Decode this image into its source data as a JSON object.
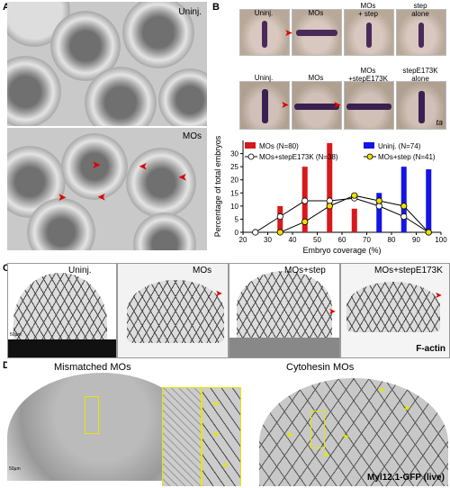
{
  "panels": {
    "A": {
      "label": "A",
      "top_label": "Uninj.",
      "bottom_label": "MOs"
    },
    "B": {
      "label": "B",
      "row1": [
        "Uninj.",
        "MOs",
        "MOs\n+ step",
        "step\nalone"
      ],
      "row2": [
        "Uninj.",
        "MOs",
        "MOs\n+stepE173K",
        "stepE173K\nalone"
      ],
      "ta_label": "ta"
    },
    "C": {
      "label": "C",
      "tiles": [
        "Uninj.",
        "MOs",
        "MOs+step",
        "MOs+stepE173K"
      ],
      "scale": "50µm",
      "stain": "F-actin"
    },
    "D": {
      "label": "D",
      "left": "Mismatched MOs",
      "right": "Cytohesin MOs",
      "scale": "50µm",
      "reporter": "Myl12.1-GFP (live)"
    }
  },
  "chart_data": {
    "type": "bar",
    "ylabel": "Percentage of total embryos",
    "xlabel": "Embryo coverage (%)",
    "xlim": [
      20,
      100
    ],
    "ylim": [
      0,
      35
    ],
    "xticks": [
      20,
      30,
      40,
      50,
      60,
      70,
      80,
      90,
      100
    ],
    "yticks": [
      0,
      5,
      10,
      15,
      20,
      25,
      30
    ],
    "series": [
      {
        "name": "MOs (N=80)",
        "kind": "bar",
        "color": "#d7191c",
        "x": [
          35,
          45,
          55,
          65
        ],
        "values": [
          10,
          25,
          34,
          9
        ]
      },
      {
        "name": "Uninj. (N=74)",
        "kind": "bar",
        "color": "#1414e6",
        "x": [
          75,
          85,
          95
        ],
        "values": [
          15,
          25,
          24
        ]
      },
      {
        "name": "MOs+stepE173K (N=38)",
        "kind": "line",
        "marker": "#ffffff",
        "x": [
          25,
          35,
          45,
          55,
          65,
          75,
          85,
          95
        ],
        "values": [
          0,
          6,
          12,
          12,
          13,
          10,
          6,
          0
        ]
      },
      {
        "name": "MOs+step (N=41)",
        "kind": "line",
        "marker": "#f0e000",
        "x": [
          35,
          45,
          55,
          65,
          75,
          85,
          95
        ],
        "values": [
          0,
          4,
          10,
          14,
          12,
          10,
          0
        ]
      }
    ]
  }
}
